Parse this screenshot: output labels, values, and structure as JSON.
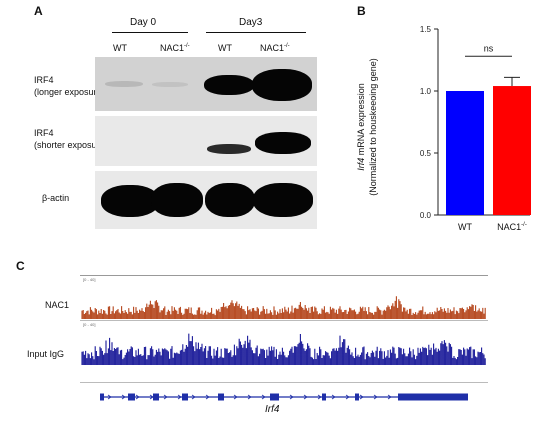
{
  "panel_a": {
    "letter": "A",
    "groups": [
      "Day 0",
      "Day3"
    ],
    "lanes": [
      "WT",
      "NAC1",
      "WT",
      "NAC1"
    ],
    "ko_superscript": "-/-",
    "blots": [
      {
        "name": "IRF4",
        "detail": "(longer exposure)"
      },
      {
        "name": "IRF4",
        "detail": "(shorter exposure)"
      },
      {
        "name": "β-actin",
        "detail": ""
      }
    ]
  },
  "panel_b": {
    "letter": "B",
    "significance": "ns",
    "chart_data": {
      "type": "bar",
      "categories": [
        "WT",
        "NAC1"
      ],
      "category_superscripts": [
        "",
        "-/-"
      ],
      "values": [
        1.0,
        1.04
      ],
      "errors": [
        0.0,
        0.07
      ],
      "bar_colors": [
        "#0000ff",
        "#ff0000"
      ],
      "ylabel_italic": "Irf4",
      "ylabel": " mRNA expression",
      "ylabel_line2": "(Normalized to houskeeoing gene)",
      "ylim": [
        0,
        1.5
      ],
      "yticks": [
        "0.0",
        "0.5",
        "1.0",
        "1.5"
      ]
    }
  },
  "panel_c": {
    "letter": "C",
    "tracks": [
      {
        "name": "NAC1",
        "range": "[0 - 40]",
        "color": "#b5451b"
      },
      {
        "name": "Input IgG",
        "range": "[0 - 40]",
        "color": "#1a1a99"
      }
    ],
    "gene": "Irf4"
  }
}
